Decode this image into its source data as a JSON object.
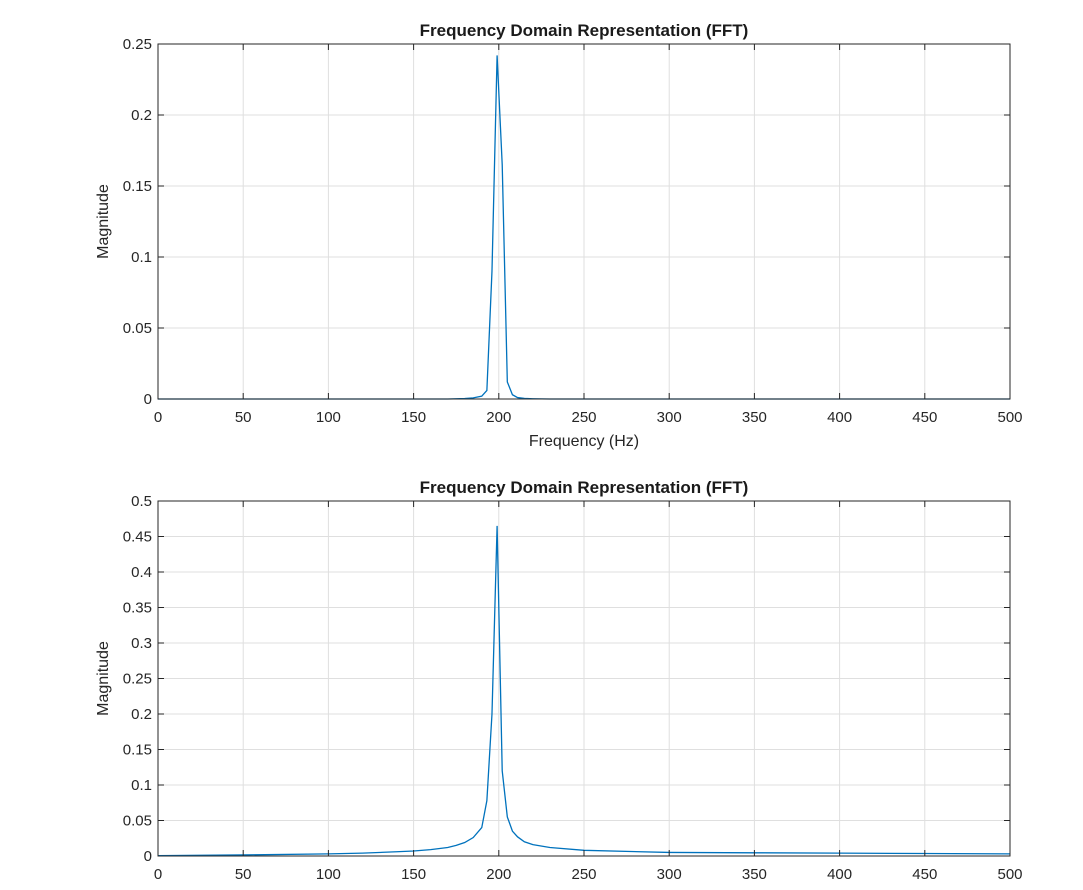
{
  "figure": {
    "background": "#ffffff"
  },
  "chart_data": [
    {
      "type": "line",
      "title": "Frequency Domain Representation (FFT)",
      "xlabel": "Frequency (Hz)",
      "ylabel": "Magnitude",
      "xlim": [
        0,
        500
      ],
      "ylim": [
        0,
        0.25
      ],
      "xticks": [
        0,
        50,
        100,
        150,
        200,
        250,
        300,
        350,
        400,
        450,
        500
      ],
      "xtick_labels": [
        "0",
        "50",
        "100",
        "150",
        "200",
        "250",
        "300",
        "350",
        "400",
        "450",
        "500"
      ],
      "yticks": [
        0,
        0.05,
        0.1,
        0.15,
        0.2,
        0.25
      ],
      "ytick_labels": [
        "0",
        "0.05",
        "0.1",
        "0.15",
        "0.2",
        "0.25"
      ],
      "grid": true,
      "color": "#0072BD",
      "series": [
        {
          "x": [
            0,
            170,
            180,
            185,
            190,
            193,
            196,
            199,
            202,
            205,
            208,
            211,
            215,
            220,
            230,
            300,
            400,
            500
          ],
          "y": [
            0,
            0,
            0.0003,
            0.0008,
            0.002,
            0.006,
            0.09,
            0.242,
            0.165,
            0.012,
            0.003,
            0.001,
            0.0004,
            0.0002,
            0,
            0,
            0,
            0
          ]
        }
      ]
    },
    {
      "type": "line",
      "title": "Frequency Domain Representation (FFT)",
      "xlabel": "",
      "ylabel": "Magnitude",
      "xlim": [
        0,
        500
      ],
      "ylim": [
        0,
        0.5
      ],
      "xticks": [
        0,
        50,
        100,
        150,
        200,
        250,
        300,
        350,
        400,
        450,
        500
      ],
      "xtick_labels": [
        "0",
        "50",
        "100",
        "150",
        "200",
        "250",
        "300",
        "350",
        "400",
        "450",
        "500"
      ],
      "yticks": [
        0,
        0.05,
        0.1,
        0.15,
        0.2,
        0.25,
        0.3,
        0.35,
        0.4,
        0.45,
        0.5
      ],
      "ytick_labels": [
        "0",
        "0.05",
        "0.1",
        "0.15",
        "0.2",
        "0.25",
        "0.3",
        "0.35",
        "0.4",
        "0.45",
        "0.5"
      ],
      "grid": true,
      "color": "#0072BD",
      "series": [
        {
          "x": [
            0,
            50,
            100,
            120,
            140,
            150,
            160,
            170,
            175,
            180,
            185,
            190,
            193,
            196,
            199,
            202,
            205,
            208,
            211,
            215,
            220,
            230,
            250,
            300,
            350,
            400,
            450,
            500
          ],
          "y": [
            0.0005,
            0.0015,
            0.003,
            0.004,
            0.006,
            0.007,
            0.009,
            0.012,
            0.015,
            0.019,
            0.026,
            0.04,
            0.078,
            0.2,
            0.465,
            0.12,
            0.055,
            0.035,
            0.027,
            0.02,
            0.016,
            0.012,
            0.008,
            0.005,
            0.0045,
            0.004,
            0.0035,
            0.003
          ]
        }
      ]
    }
  ]
}
